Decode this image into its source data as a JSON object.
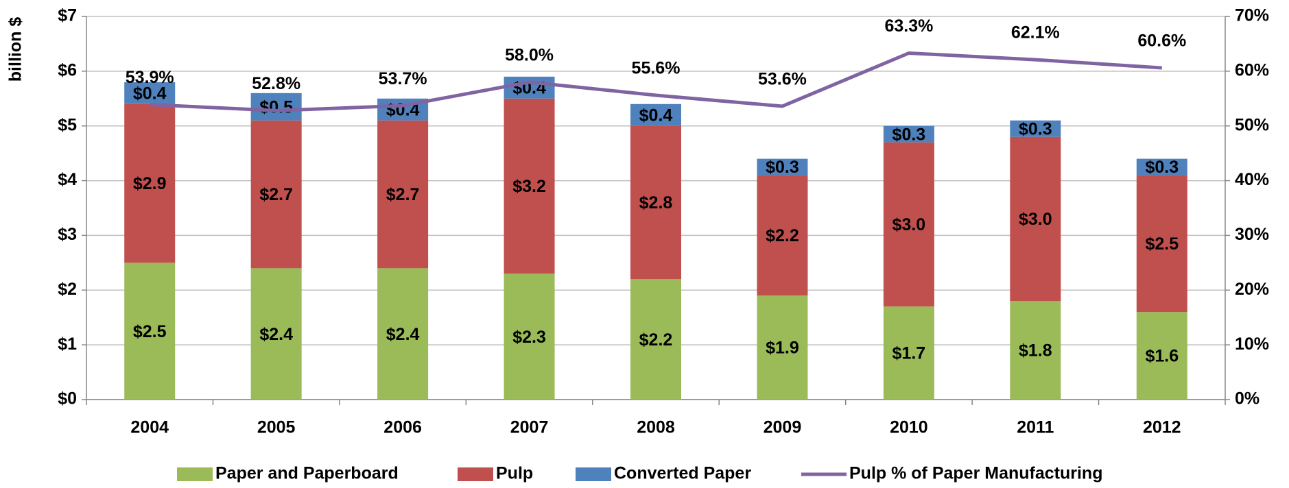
{
  "chart_data": {
    "type": "bar",
    "y_label": "billion $",
    "categories": [
      "2004",
      "2005",
      "2006",
      "2007",
      "2008",
      "2009",
      "2010",
      "2011",
      "2012"
    ],
    "series": [
      {
        "name": "Paper and Paperboard",
        "color": "#9bbb59",
        "values": [
          2.5,
          2.4,
          2.4,
          2.3,
          2.2,
          1.9,
          1.7,
          1.8,
          1.6
        ],
        "value_labels": [
          "$2.5",
          "$2.4",
          "$2.4",
          "$2.3",
          "$2.2",
          "$1.9",
          "$1.7",
          "$1.8",
          "$1.6"
        ]
      },
      {
        "name": "Pulp",
        "color": "#c0504d",
        "values": [
          2.9,
          2.7,
          2.7,
          3.2,
          2.8,
          2.2,
          3.0,
          3.0,
          2.5
        ],
        "value_labels": [
          "$2.9",
          "$2.7",
          "$2.7",
          "$3.2",
          "$2.8",
          "$2.2",
          "$3.0",
          "$3.0",
          "$2.5"
        ]
      },
      {
        "name": "Converted Paper",
        "color": "#4f81bd",
        "values": [
          0.4,
          0.5,
          0.4,
          0.4,
          0.4,
          0.3,
          0.3,
          0.3,
          0.3
        ],
        "value_labels": [
          "$0.4",
          "$0.5",
          "$0.4",
          "$0.4",
          "$0.4",
          "$0.3",
          "$0.3",
          "$0.3",
          "$0.3"
        ]
      },
      {
        "name": "Pulp % of Paper Manufacturing",
        "type": "line",
        "axis": "y2",
        "color": "#8064a2",
        "values": [
          53.9,
          52.8,
          53.7,
          58.0,
          55.6,
          53.6,
          63.3,
          62.1,
          60.6
        ],
        "value_labels": [
          "53.9%",
          "52.8%",
          "53.7%",
          "58.0%",
          "55.6%",
          "53.6%",
          "63.3%",
          "62.1%",
          "60.6%"
        ]
      }
    ],
    "stacked": true,
    "ylim": [
      0,
      7
    ],
    "yticks": [
      {
        "value": 0,
        "label": "$0"
      },
      {
        "value": 1,
        "label": "$1"
      },
      {
        "value": 2,
        "label": "$2"
      },
      {
        "value": 3,
        "label": "$3"
      },
      {
        "value": 4,
        "label": "$4"
      },
      {
        "value": 5,
        "label": "$5"
      },
      {
        "value": 6,
        "label": "$6"
      },
      {
        "value": 7,
        "label": "$7"
      }
    ],
    "y2lim": [
      0,
      70
    ],
    "y2ticks": [
      {
        "value": 0,
        "label": "0%"
      },
      {
        "value": 10,
        "label": "10%"
      },
      {
        "value": 20,
        "label": "20%"
      },
      {
        "value": 30,
        "label": "30%"
      },
      {
        "value": 40,
        "label": "40%"
      },
      {
        "value": 50,
        "label": "50%"
      },
      {
        "value": 60,
        "label": "60%"
      },
      {
        "value": 70,
        "label": "70%"
      }
    ],
    "grid": true,
    "legend": "bottom"
  }
}
